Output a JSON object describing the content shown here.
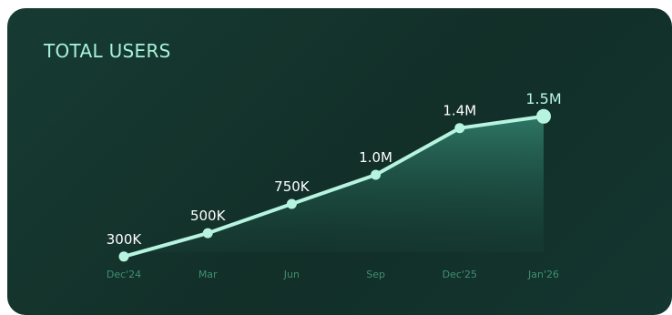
{
  "card": {
    "title": "TOTAL USERS"
  },
  "colors": {
    "background": "#143530",
    "line": "#b7f4df",
    "title": "#a8f3da",
    "tick": "#3f8f70",
    "area_top": "#2f7a68"
  },
  "chart_data": {
    "type": "area",
    "title": "TOTAL USERS",
    "xlabel": "",
    "ylabel": "",
    "categories": [
      "Dec'24",
      "Mar",
      "Jun",
      "Sep",
      "Dec'25",
      "Jan'26"
    ],
    "values": [
      300000,
      500000,
      750000,
      1000000,
      1400000,
      1500000
    ],
    "labels": [
      "300K",
      "500K",
      "750K",
      "1.0M",
      "1.4M",
      "1.5M"
    ],
    "ylim": [
      150000,
      1600000
    ],
    "grid": false,
    "legend": "none"
  }
}
